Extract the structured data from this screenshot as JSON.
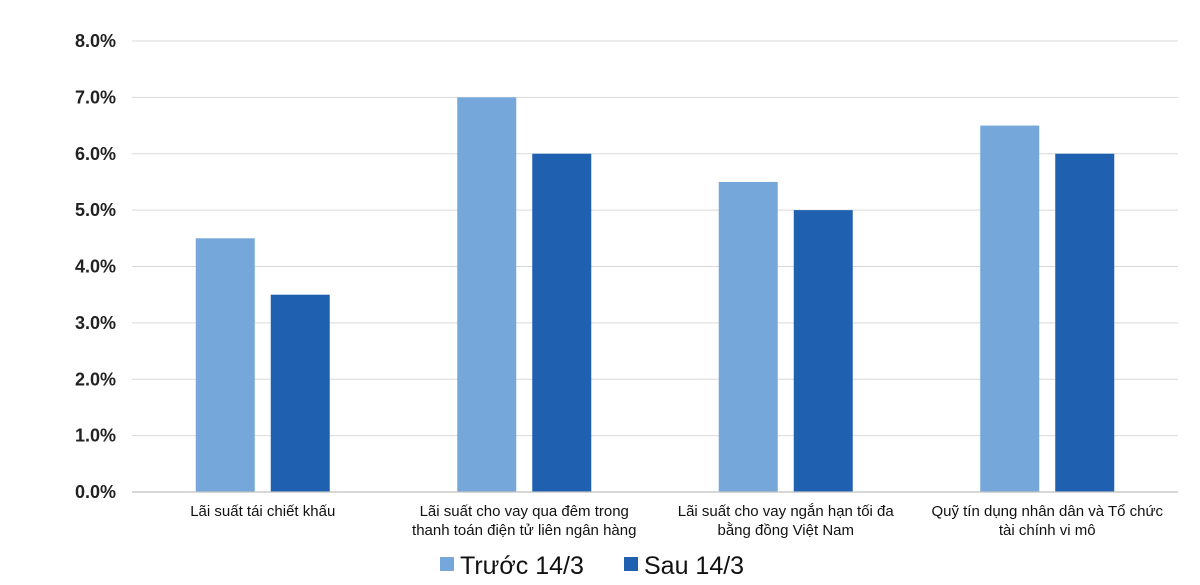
{
  "chart_data": {
    "type": "bar",
    "categories": [
      [
        "Lãi suất tái chiết khấu"
      ],
      [
        "Lãi suất cho vay qua đêm trong",
        "thanh toán điện tử liên ngân hàng"
      ],
      [
        "Lãi suất cho vay ngắn hạn tối đa",
        "bằng đồng Việt Nam"
      ],
      [
        "Quỹ tín dụng nhân dân và Tổ chức",
        "tài chính vi mô"
      ]
    ],
    "series": [
      {
        "name": "Trước 14/3",
        "values": [
          4.5,
          7.0,
          5.5,
          6.5
        ],
        "color": "#75A7DB"
      },
      {
        "name": "Sau 14/3",
        "values": [
          3.5,
          6.0,
          5.0,
          6.0
        ],
        "color": "#2060B0"
      }
    ],
    "yticks": [
      "0.0%",
      "1.0%",
      "2.0%",
      "3.0%",
      "4.0%",
      "5.0%",
      "6.0%",
      "7.0%",
      "8.0%"
    ],
    "ylim": [
      0,
      8
    ],
    "grid": true,
    "legend_position": "bottom-center",
    "title": "",
    "xlabel": "",
    "ylabel": ""
  }
}
